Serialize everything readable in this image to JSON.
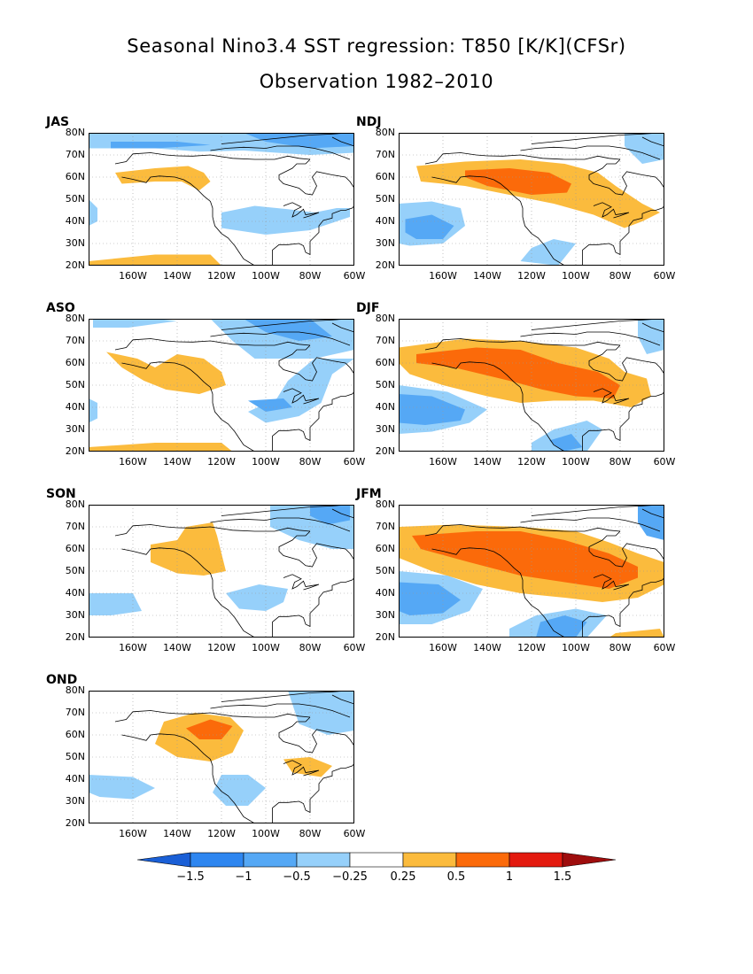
{
  "title_line1": "Seasonal Nino3.4 SST regression: T850 [K/K](CFSr)",
  "title_line2": "Observation 1982–2010",
  "lat_labels": [
    "80N",
    "70N",
    "60N",
    "50N",
    "40N",
    "30N",
    "20N"
  ],
  "lon_labels": [
    "160W",
    "140W",
    "120W",
    "100W",
    "80W",
    "60W"
  ],
  "map_extent": {
    "lon": [
      -180,
      -60
    ],
    "lat": [
      20,
      80
    ]
  },
  "panels": [
    {
      "label": "JAS"
    },
    {
      "label": "NDJ"
    },
    {
      "label": "ASO"
    },
    {
      "label": "DJF"
    },
    {
      "label": "SON"
    },
    {
      "label": "JFM"
    },
    {
      "label": "OND"
    }
  ],
  "colorbar": {
    "labels": [
      "−1.5",
      "−1",
      "−0.5",
      "−0.25",
      "0.25",
      "0.5",
      "1",
      "1.5"
    ],
    "colors": [
      "#1a5fd6",
      "#2e86f0",
      "#55a8f5",
      "#96d0fa",
      "#ffffff",
      "#fbbb3d",
      "#fb6a0a",
      "#e31a0f",
      "#9e0d0d"
    ]
  }
}
